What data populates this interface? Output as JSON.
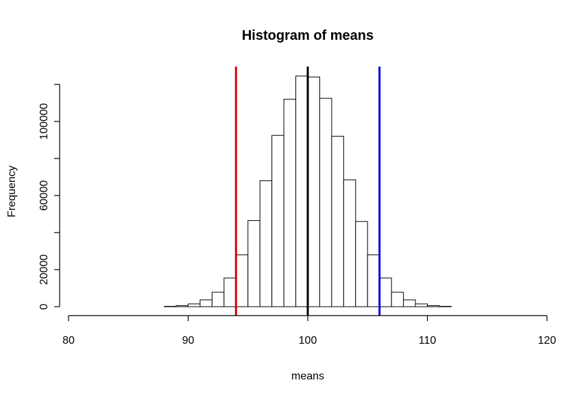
{
  "chart_data": {
    "type": "bar",
    "title": "Histogram of means",
    "xlabel": "means",
    "ylabel": "Frequency",
    "xlim": [
      80,
      120
    ],
    "ylim": [
      0,
      120000
    ],
    "x_ticks": [
      80,
      90,
      100,
      110,
      120
    ],
    "x_tick_labels": [
      "80",
      "90",
      "100",
      "110",
      "120"
    ],
    "y_ticks": [
      0,
      20000,
      60000,
      100000
    ],
    "y_tick_labels": [
      "0",
      "20000",
      "60000",
      "100000"
    ],
    "bins": [
      {
        "start": 84,
        "end": 85,
        "value": 0
      },
      {
        "start": 85,
        "end": 86,
        "value": 0
      },
      {
        "start": 86,
        "end": 87,
        "value": 0
      },
      {
        "start": 87,
        "end": 88,
        "value": 0
      },
      {
        "start": 88,
        "end": 89,
        "value": 200
      },
      {
        "start": 89,
        "end": 90,
        "value": 600
      },
      {
        "start": 90,
        "end": 91,
        "value": 1500
      },
      {
        "start": 91,
        "end": 92,
        "value": 3700
      },
      {
        "start": 92,
        "end": 93,
        "value": 7800
      },
      {
        "start": 93,
        "end": 94,
        "value": 15500
      },
      {
        "start": 94,
        "end": 95,
        "value": 28000
      },
      {
        "start": 95,
        "end": 96,
        "value": 46500
      },
      {
        "start": 96,
        "end": 97,
        "value": 68000
      },
      {
        "start": 97,
        "end": 98,
        "value": 92500
      },
      {
        "start": 98,
        "end": 99,
        "value": 112000
      },
      {
        "start": 99,
        "end": 100,
        "value": 124500
      },
      {
        "start": 100,
        "end": 101,
        "value": 124000
      },
      {
        "start": 101,
        "end": 102,
        "value": 112500
      },
      {
        "start": 102,
        "end": 103,
        "value": 92000
      },
      {
        "start": 103,
        "end": 104,
        "value": 68500
      },
      {
        "start": 104,
        "end": 105,
        "value": 46000
      },
      {
        "start": 105,
        "end": 106,
        "value": 28000
      },
      {
        "start": 106,
        "end": 107,
        "value": 15500
      },
      {
        "start": 107,
        "end": 108,
        "value": 7800
      },
      {
        "start": 108,
        "end": 109,
        "value": 3700
      },
      {
        "start": 109,
        "end": 110,
        "value": 1500
      },
      {
        "start": 110,
        "end": 111,
        "value": 600
      },
      {
        "start": 111,
        "end": 112,
        "value": 200
      },
      {
        "start": 112,
        "end": 113,
        "value": 0
      },
      {
        "start": 113,
        "end": 114,
        "value": 0
      },
      {
        "start": 114,
        "end": 115,
        "value": 0
      },
      {
        "start": 115,
        "end": 116,
        "value": 0
      },
      {
        "start": 116,
        "end": 117,
        "value": 0
      }
    ],
    "vlines": [
      {
        "x": 94,
        "color": "#dd0000"
      },
      {
        "x": 100,
        "color": "#000000"
      },
      {
        "x": 106,
        "color": "#0000dd"
      }
    ],
    "grid": false,
    "legend": "none"
  }
}
